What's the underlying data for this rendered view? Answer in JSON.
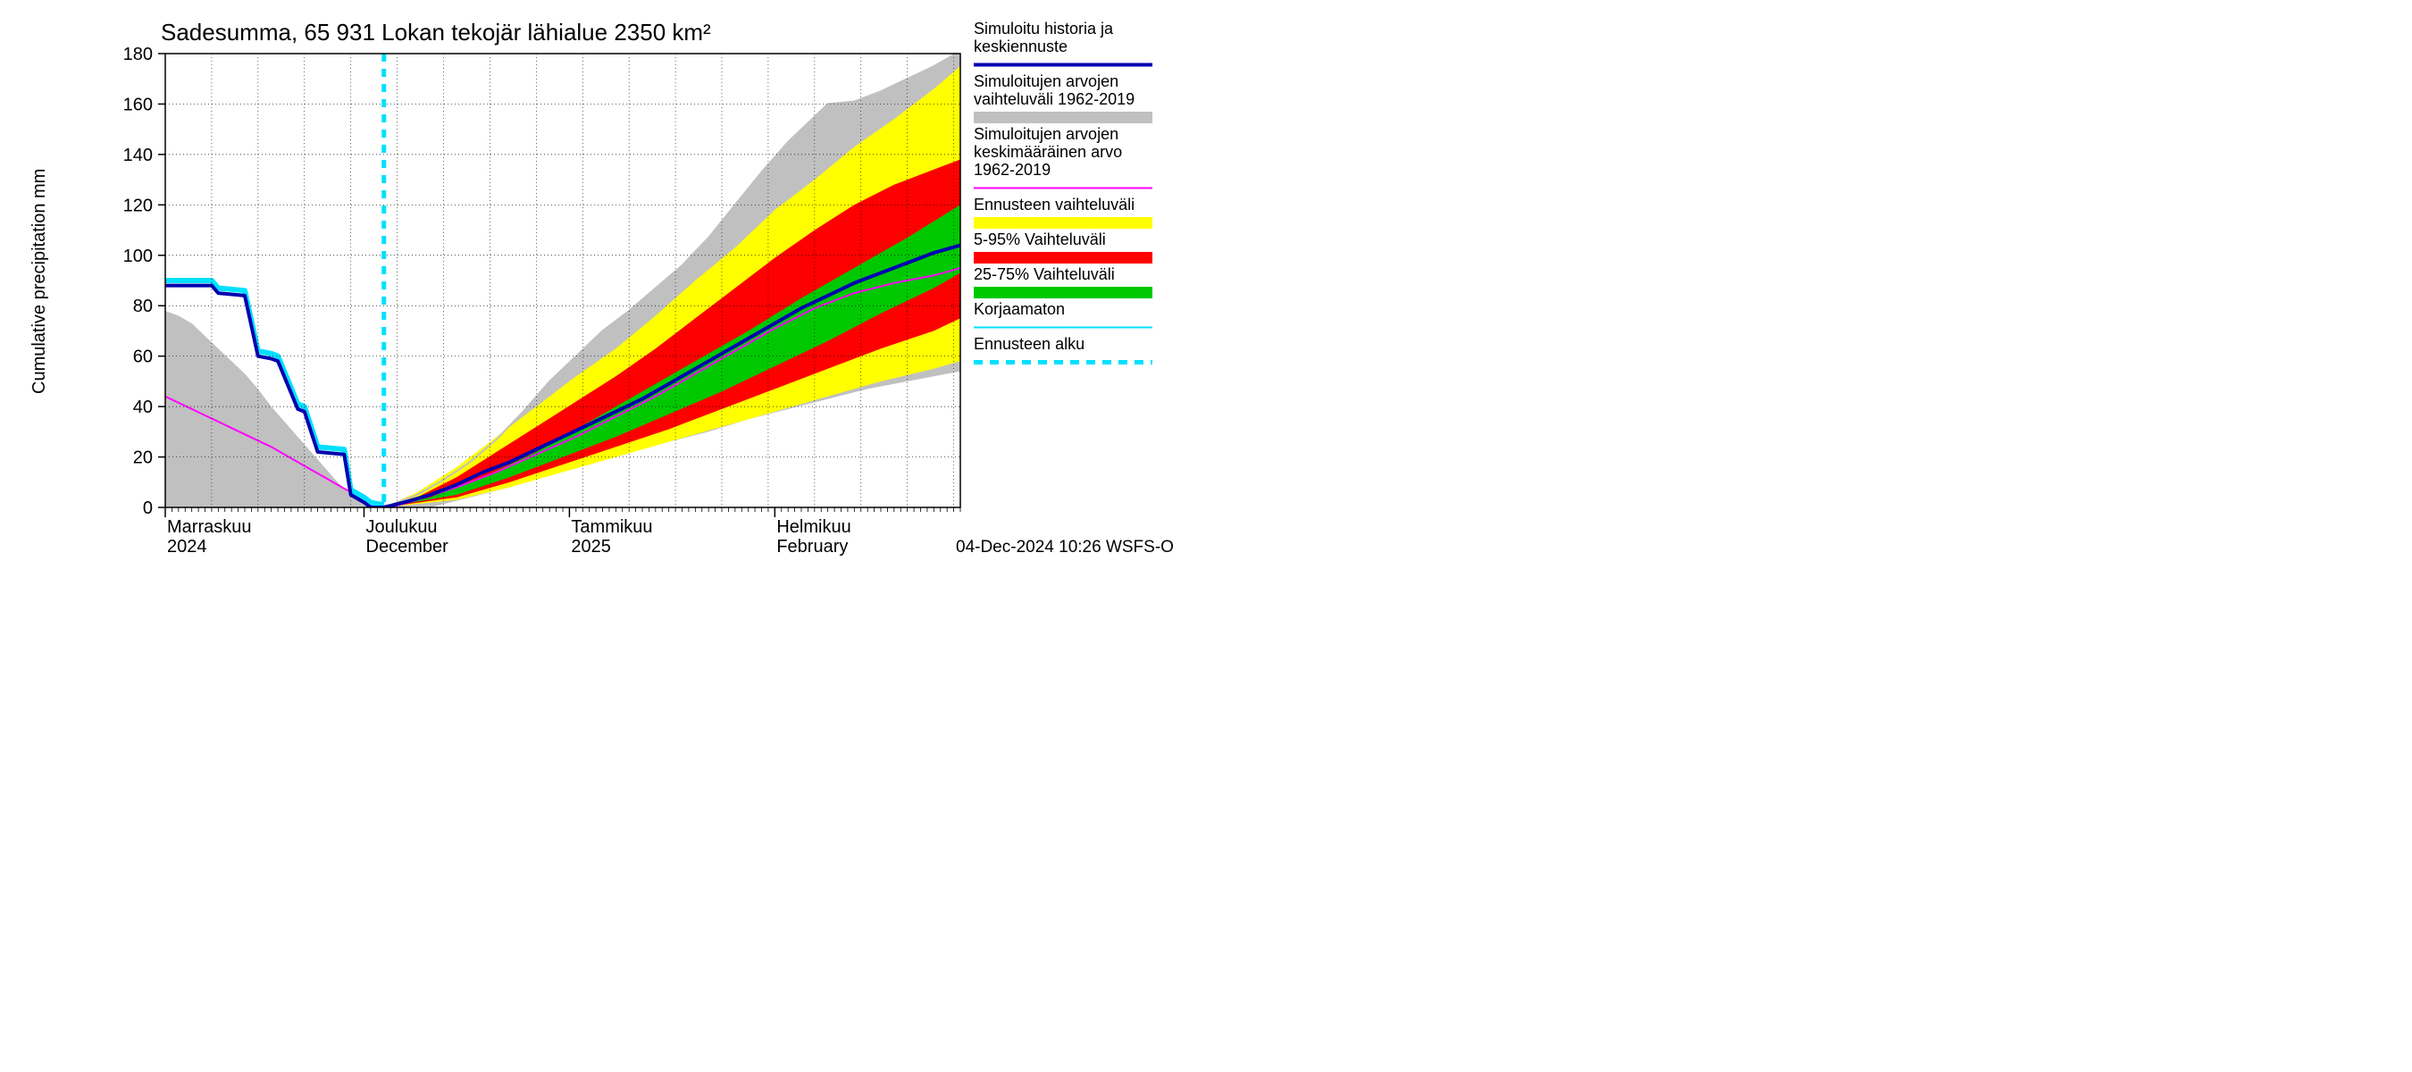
{
  "title": "Sadesumma, 65 931 Lokan tekojär lähialue 2350 km²",
  "ylabel": "Cumulative precipitation   mm",
  "footer": "04-Dec-2024 10:26 WSFS-O",
  "chart": {
    "type": "area-line",
    "x_domain": [
      0,
      120
    ],
    "y_domain": [
      0,
      180
    ],
    "y_ticks": [
      0,
      20,
      40,
      60,
      80,
      100,
      120,
      140,
      160,
      180
    ],
    "x_minor_step": 1,
    "x_major_ticks": [
      0,
      30,
      61,
      92
    ],
    "x_categories": [
      {
        "x": 0,
        "line1": "Marraskuu",
        "line2": "2024"
      },
      {
        "x": 30,
        "line1": "Joulukuu",
        "line2": "December"
      },
      {
        "x": 61,
        "line1": "Tammikuu",
        "line2": "2025"
      },
      {
        "x": 92,
        "line1": "Helmikuu",
        "line2": "February"
      }
    ],
    "forecast_start_x": 33,
    "colors": {
      "bg": "#ffffff",
      "grid": "#000000",
      "grey_band": "#c0c0c0",
      "yellow_band": "#ffff00",
      "red_band": "#ff0000",
      "green_band": "#00c800",
      "main_line": "#0000b0",
      "magenta_line": "#ff00ff",
      "cyan_line": "#00e0ff",
      "forecast_line": "#00e0ff"
    },
    "series": {
      "grey_hist_upper": [
        [
          0,
          78
        ],
        [
          2,
          76
        ],
        [
          4,
          73
        ],
        [
          6,
          68
        ],
        [
          8,
          63
        ],
        [
          10,
          58
        ],
        [
          12,
          53
        ],
        [
          14,
          47
        ],
        [
          16,
          40
        ],
        [
          18,
          34
        ],
        [
          20,
          28
        ],
        [
          22,
          22
        ],
        [
          24,
          16
        ],
        [
          26,
          10
        ],
        [
          28,
          5
        ],
        [
          30,
          1
        ],
        [
          31,
          0
        ]
      ],
      "grey_hist_lower": [
        [
          0,
          0
        ],
        [
          31,
          0
        ]
      ],
      "grey_fut_upper": [
        [
          31,
          0
        ],
        [
          34,
          1
        ],
        [
          38,
          5
        ],
        [
          42,
          11
        ],
        [
          46,
          18
        ],
        [
          50,
          27
        ],
        [
          54,
          38
        ],
        [
          58,
          50
        ],
        [
          62,
          60
        ],
        [
          66,
          70
        ],
        [
          70,
          78
        ],
        [
          74,
          87
        ],
        [
          78,
          96
        ],
        [
          82,
          107
        ],
        [
          86,
          120
        ],
        [
          90,
          133
        ],
        [
          94,
          145
        ],
        [
          98,
          155
        ],
        [
          100,
          160
        ],
        [
          104,
          161
        ],
        [
          108,
          165
        ],
        [
          112,
          170
        ],
        [
          116,
          175
        ],
        [
          120,
          181
        ]
      ],
      "grey_fut_lower": [
        [
          31,
          0
        ],
        [
          40,
          0
        ],
        [
          46,
          4
        ],
        [
          52,
          8
        ],
        [
          58,
          13
        ],
        [
          64,
          17
        ],
        [
          70,
          22
        ],
        [
          76,
          26
        ],
        [
          82,
          30
        ],
        [
          88,
          35
        ],
        [
          94,
          39
        ],
        [
          100,
          43
        ],
        [
          106,
          47
        ],
        [
          112,
          50
        ],
        [
          116,
          52
        ],
        [
          120,
          54
        ]
      ],
      "yellow_upper": [
        [
          33,
          0
        ],
        [
          38,
          6
        ],
        [
          44,
          16
        ],
        [
          50,
          28
        ],
        [
          56,
          40
        ],
        [
          62,
          52
        ],
        [
          68,
          63
        ],
        [
          74,
          76
        ],
        [
          80,
          90
        ],
        [
          86,
          103
        ],
        [
          92,
          118
        ],
        [
          98,
          130
        ],
        [
          104,
          143
        ],
        [
          110,
          154
        ],
        [
          116,
          166
        ],
        [
          120,
          175
        ]
      ],
      "yellow_lower": [
        [
          33,
          0
        ],
        [
          44,
          3
        ],
        [
          52,
          8
        ],
        [
          60,
          14
        ],
        [
          68,
          20
        ],
        [
          76,
          26
        ],
        [
          84,
          32
        ],
        [
          92,
          38
        ],
        [
          100,
          44
        ],
        [
          108,
          50
        ],
        [
          116,
          55
        ],
        [
          120,
          58
        ]
      ],
      "red_upper": [
        [
          33,
          0
        ],
        [
          38,
          4
        ],
        [
          44,
          12
        ],
        [
          50,
          22
        ],
        [
          56,
          32
        ],
        [
          62,
          42
        ],
        [
          68,
          52
        ],
        [
          74,
          63
        ],
        [
          80,
          75
        ],
        [
          86,
          87
        ],
        [
          92,
          99
        ],
        [
          98,
          110
        ],
        [
          104,
          120
        ],
        [
          110,
          128
        ],
        [
          116,
          134
        ],
        [
          120,
          138
        ]
      ],
      "red_lower": [
        [
          33,
          0
        ],
        [
          44,
          4
        ],
        [
          52,
          10
        ],
        [
          60,
          17
        ],
        [
          68,
          24
        ],
        [
          76,
          31
        ],
        [
          84,
          39
        ],
        [
          92,
          47
        ],
        [
          100,
          55
        ],
        [
          108,
          63
        ],
        [
          116,
          70
        ],
        [
          120,
          75
        ]
      ],
      "green_upper": [
        [
          33,
          0
        ],
        [
          40,
          4
        ],
        [
          48,
          12
        ],
        [
          56,
          22
        ],
        [
          64,
          34
        ],
        [
          72,
          46
        ],
        [
          80,
          58
        ],
        [
          88,
          70
        ],
        [
          96,
          83
        ],
        [
          104,
          95
        ],
        [
          112,
          107
        ],
        [
          120,
          120
        ]
      ],
      "green_lower": [
        [
          33,
          0
        ],
        [
          44,
          5
        ],
        [
          52,
          12
        ],
        [
          60,
          20
        ],
        [
          68,
          28
        ],
        [
          76,
          37
        ],
        [
          84,
          46
        ],
        [
          92,
          56
        ],
        [
          100,
          66
        ],
        [
          108,
          77
        ],
        [
          116,
          87
        ],
        [
          120,
          93
        ]
      ],
      "main_blue": [
        [
          0,
          88
        ],
        [
          7,
          88
        ],
        [
          8,
          85
        ],
        [
          12,
          84
        ],
        [
          14,
          60
        ],
        [
          16,
          59
        ],
        [
          17,
          58
        ],
        [
          20,
          39
        ],
        [
          21,
          38
        ],
        [
          23,
          22
        ],
        [
          27,
          21
        ],
        [
          28,
          5
        ],
        [
          30,
          2
        ],
        [
          31,
          0
        ],
        [
          33,
          0
        ],
        [
          36,
          2
        ],
        [
          40,
          5
        ],
        [
          44,
          9
        ],
        [
          48,
          14
        ],
        [
          52,
          18
        ],
        [
          56,
          23
        ],
        [
          60,
          28
        ],
        [
          64,
          33
        ],
        [
          68,
          38
        ],
        [
          72,
          43
        ],
        [
          76,
          49
        ],
        [
          80,
          55
        ],
        [
          84,
          61
        ],
        [
          88,
          67
        ],
        [
          92,
          73
        ],
        [
          96,
          79
        ],
        [
          100,
          84
        ],
        [
          104,
          89
        ],
        [
          108,
          93
        ],
        [
          112,
          97
        ],
        [
          116,
          101
        ],
        [
          120,
          104
        ]
      ],
      "cyan_outline": [
        [
          0,
          90
        ],
        [
          7,
          90
        ],
        [
          8,
          87
        ],
        [
          12,
          86
        ],
        [
          14,
          62
        ],
        [
          16,
          61
        ],
        [
          17,
          60
        ],
        [
          20,
          41
        ],
        [
          21,
          40
        ],
        [
          23,
          24
        ],
        [
          27,
          23
        ],
        [
          28,
          7
        ],
        [
          30,
          4
        ],
        [
          31,
          2
        ],
        [
          33,
          1
        ]
      ],
      "magenta": [
        [
          0,
          44
        ],
        [
          4,
          39
        ],
        [
          8,
          34
        ],
        [
          12,
          29
        ],
        [
          16,
          24
        ],
        [
          20,
          18
        ],
        [
          24,
          12
        ],
        [
          28,
          6
        ],
        [
          31,
          1
        ],
        [
          34,
          0
        ],
        [
          38,
          3
        ],
        [
          44,
          8
        ],
        [
          50,
          14
        ],
        [
          56,
          21
        ],
        [
          62,
          28
        ],
        [
          68,
          36
        ],
        [
          74,
          44
        ],
        [
          80,
          53
        ],
        [
          86,
          62
        ],
        [
          92,
          71
        ],
        [
          98,
          79
        ],
        [
          104,
          85
        ],
        [
          110,
          89
        ],
        [
          116,
          92
        ],
        [
          120,
          95
        ]
      ]
    }
  },
  "legend": {
    "items": [
      {
        "label1": "Simuloitu historia ja",
        "label2": "keskiennuste",
        "type": "line",
        "color": "#0000b0",
        "width": 4
      },
      {
        "label1": "Simuloitujen arvojen",
        "label2": "vaihteluväli 1962-2019",
        "type": "band",
        "color": "#c0c0c0"
      },
      {
        "label1": "Simuloitujen arvojen",
        "label2": "keskimääräinen arvo",
        "label3": "  1962-2019",
        "type": "line",
        "color": "#ff00ff",
        "width": 2
      },
      {
        "label1": "Ennusteen vaihteluväli",
        "type": "band",
        "color": "#ffff00"
      },
      {
        "label1": "5-95% Vaihteluväli",
        "type": "band",
        "color": "#ff0000"
      },
      {
        "label1": "25-75% Vaihteluväli",
        "type": "band",
        "color": "#00c800"
      },
      {
        "label1": "Korjaamaton",
        "type": "line",
        "color": "#00e0ff",
        "width": 2
      },
      {
        "label1": "Ennusteen alku",
        "type": "dash",
        "color": "#00e0ff",
        "width": 5
      }
    ]
  }
}
